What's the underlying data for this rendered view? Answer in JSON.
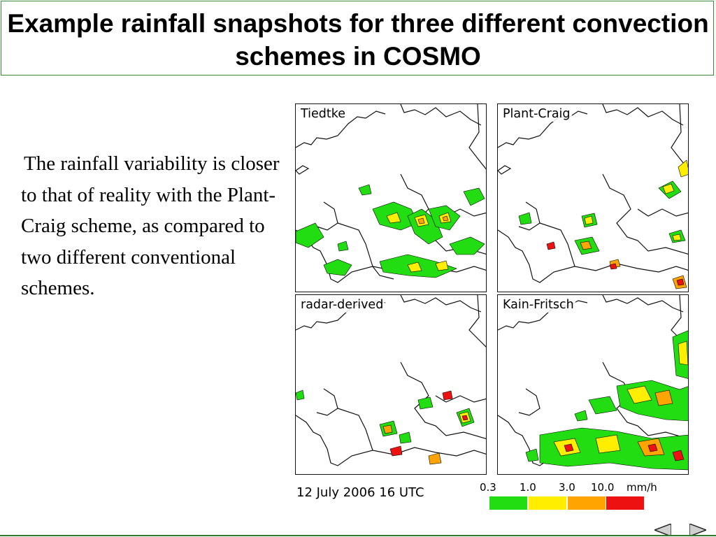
{
  "title": "Example rainfall snapshots for three different convection schemes in COSMO",
  "body_text": "The rainfall variability is closer to that of reality with the Plant-Craig scheme, as compared to two different conventional schemes.",
  "panels": [
    {
      "label": "Tiedtke"
    },
    {
      "label": "Plant-Craig"
    },
    {
      "label": "radar-derived"
    },
    {
      "label": "Kain-Fritsch"
    }
  ],
  "caption": "12 July 2006 16 UTC",
  "legend": {
    "levels": [
      "0.3",
      "1.0",
      "3.0",
      "10.0"
    ],
    "unit": "mm/h",
    "colors": [
      "#22dd11",
      "#ffee00",
      "#ffa400",
      "#ee1111"
    ]
  },
  "nav": {
    "prev_icon": "left-triangle-icon",
    "next_icon": "right-triangle-icon"
  }
}
